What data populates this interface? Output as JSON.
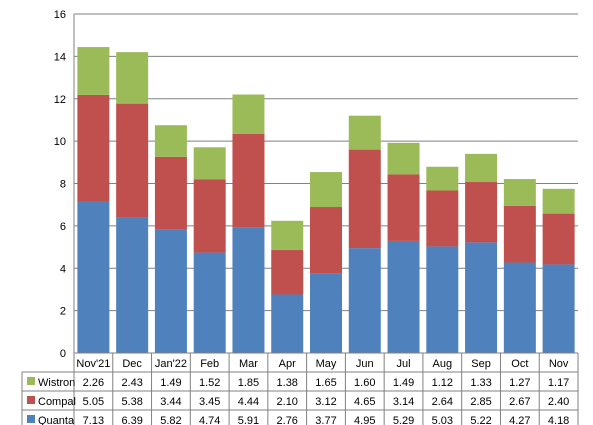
{
  "chart_data": {
    "type": "bar",
    "stacked": true,
    "categories": [
      "Nov'21",
      "Dec",
      "Jan'22",
      "Feb",
      "Mar",
      "Apr",
      "May",
      "Jun",
      "Jul",
      "Aug",
      "Sep",
      "Oct",
      "Nov"
    ],
    "series": [
      {
        "name": "Quanta",
        "color": "#4f81bd",
        "values": [
          7.13,
          6.39,
          5.82,
          4.74,
          5.91,
          2.76,
          3.77,
          4.95,
          5.29,
          5.03,
          5.22,
          4.27,
          4.18
        ]
      },
      {
        "name": "Compal",
        "color": "#c0504d",
        "values": [
          5.05,
          5.38,
          3.44,
          3.45,
          4.44,
          2.1,
          3.12,
          4.65,
          3.14,
          2.64,
          2.85,
          2.67,
          2.4
        ]
      },
      {
        "name": "Wistron",
        "color": "#9bbb59",
        "values": [
          2.26,
          2.43,
          1.49,
          1.52,
          1.85,
          1.38,
          1.65,
          1.6,
          1.49,
          1.12,
          1.33,
          1.27,
          1.17
        ]
      }
    ],
    "table_labels": [
      [
        "2.26",
        "2.43",
        "1.49",
        "1.52",
        "1.85",
        "1.38",
        "1.65",
        "1.60",
        "1.49",
        "1.12",
        "1.33",
        "1.27",
        "1.17"
      ],
      [
        "5.05",
        "5.38",
        "3.44",
        "3.45",
        "4.44",
        "2.10",
        "3.12",
        "4.65",
        "3.14",
        "2.64",
        "2.85",
        "2.67",
        "2.40"
      ],
      [
        "7.13",
        "6.39",
        "5.82",
        "4.74",
        "5.91",
        "2.76",
        "3.77",
        "4.95",
        "5.29",
        "5.03",
        "5.22",
        "4.27",
        "4.18"
      ]
    ],
    "ylim": [
      0,
      16
    ],
    "yticks": [
      "0",
      "2",
      "4",
      "6",
      "8",
      "10",
      "12",
      "14",
      "16"
    ],
    "grid": true,
    "legend": "data-table-below",
    "title": "",
    "xlabel": "",
    "ylabel": ""
  }
}
